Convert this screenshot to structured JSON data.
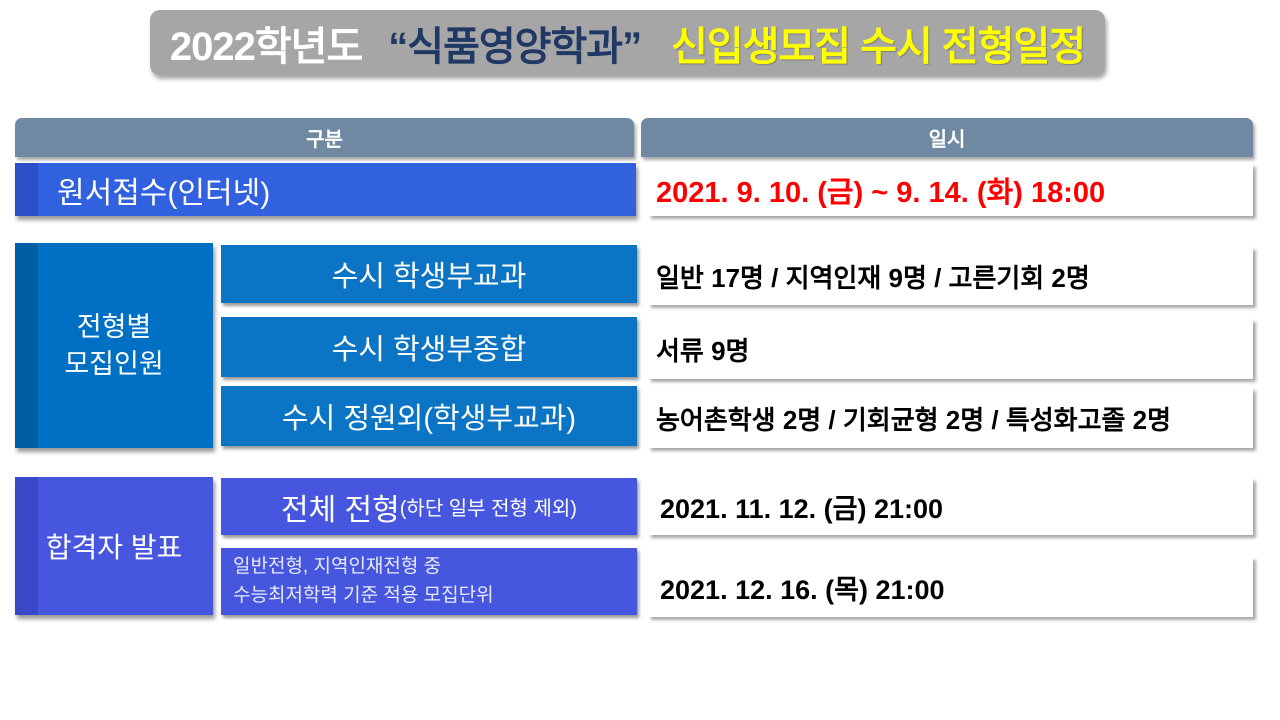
{
  "title": {
    "part1": "2022학년도",
    "part2": "“식품영양학과”",
    "part3": "신입생모집 수시 전형일정"
  },
  "header": {
    "col1": "구분",
    "col2": "일시"
  },
  "rows": {
    "application": {
      "label": "원서접수(인터넷)",
      "value": "2021. 9. 10. (금) ~ 9. 14. (화) 18:00"
    },
    "quota_section": {
      "label_line1": "전형별",
      "label_line2": "모집인원",
      "items": [
        {
          "label": "수시 학생부교과",
          "value": "일반 17명 / 지역인재 9명 / 고른기회 2명"
        },
        {
          "label": "수시 학생부종합",
          "value": "서류 9명"
        },
        {
          "label": "수시 정원외(학생부교과)",
          "value": "농어촌학생 2명 / 기회균형 2명 / 특성화고졸 2명"
        }
      ]
    },
    "announcement_section": {
      "label": "합격자 발표",
      "items": [
        {
          "label_main": "전체 전형",
          "label_sub": "(하단 일부 전형 제외)",
          "value": "2021. 11. 12. (금) 21:00"
        },
        {
          "label_line1": "일반전형, 지역인재전형 중",
          "label_line2": "수능최저학력 기준 적용 모집단위",
          "value": "2021. 12. 16. (목) 21:00"
        }
      ]
    }
  },
  "colors": {
    "title_bg": "#A6A6A6",
    "title_year_text": "#FFFFFF",
    "title_dept_text": "#1F3864",
    "title_accent_text": "#FFFF00",
    "header_bg": "#7089A3",
    "application_bg": "#3261E0",
    "application_strip": "#2A4FC9",
    "date_text": "#FF0000",
    "quota_bg": "#0070C4",
    "quota_strip": "#005EA4",
    "announce_bg": "#4656DE",
    "announce_strip": "#3A47C8"
  }
}
